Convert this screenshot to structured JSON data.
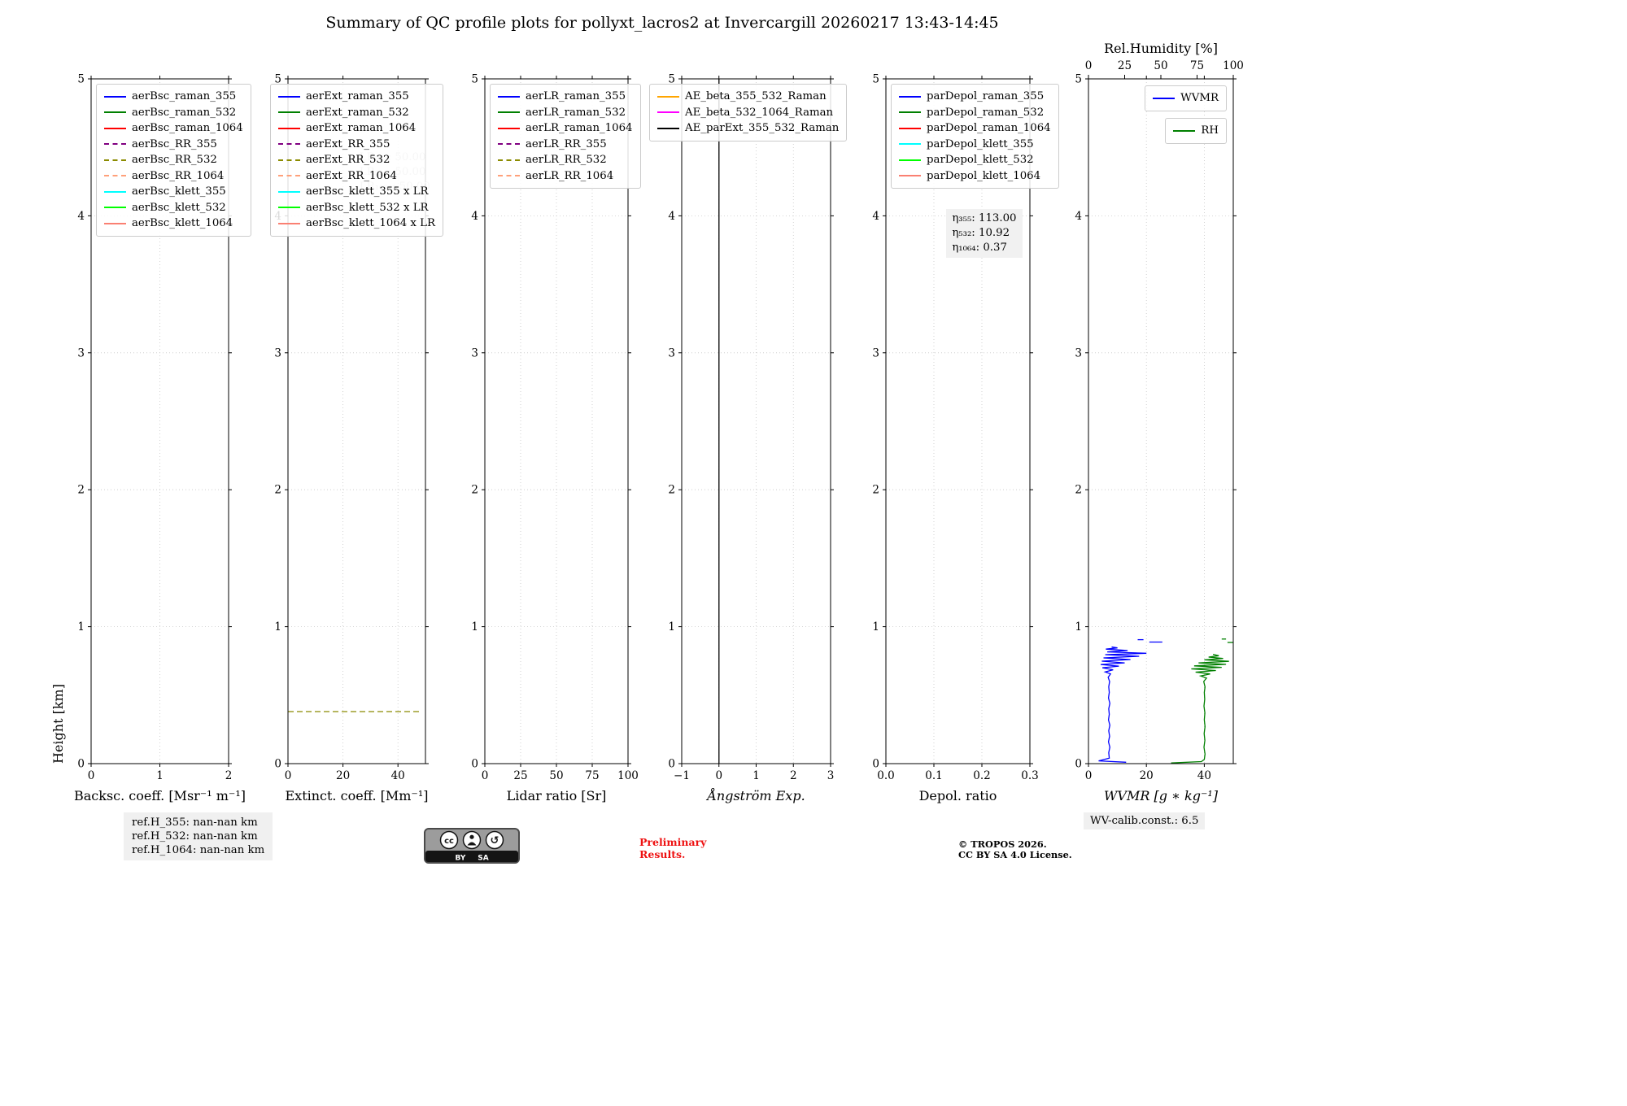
{
  "title": "Summary of QC profile plots for pollyxt_lacros2 at Invercargill 20260217 13:43-14:45",
  "ylabel": "Height [km]",
  "footer": {
    "ref_h_355": "ref.H_355: nan-nan km",
    "ref_h_532": "ref.H_532: nan-nan km",
    "ref_h_1064": "ref.H_1064: nan-nan km",
    "preliminary_1": "Preliminary",
    "preliminary_2": "Results.",
    "copyright_1": "© TROPOS 2026.",
    "copyright_2": "CC BY SA 4.0 License.",
    "wv_calib": "WV-calib.const.: 6.5",
    "cc_by": "BY",
    "cc_sa": "SA"
  },
  "chart_data": [
    {
      "type": "line",
      "xlabel": "Backsc. coeff. [Msr⁻¹ m⁻¹]",
      "xlabel_italic": false,
      "xlim": [
        0,
        2
      ],
      "xtick_vals": [
        0,
        1,
        2
      ],
      "xtick_labels": [
        "0",
        "1",
        "2"
      ],
      "ylim": [
        0,
        5
      ],
      "ytick_vals": [
        0,
        1,
        2,
        3,
        4,
        5
      ],
      "ytick_labels": [
        "0",
        "1",
        "2",
        "3",
        "4",
        "5"
      ],
      "legend": [
        {
          "label": "aerBsc_raman_355",
          "color": "#0000ff",
          "style": "solid"
        },
        {
          "label": "aerBsc_raman_532",
          "color": "#008000",
          "style": "solid"
        },
        {
          "label": "aerBsc_raman_1064",
          "color": "#ff0000",
          "style": "solid"
        },
        {
          "label": "aerBsc_RR_355",
          "color": "#800080",
          "style": "dashed"
        },
        {
          "label": "aerBsc_RR_532",
          "color": "#8b8b00",
          "style": "dashed"
        },
        {
          "label": "aerBsc_RR_1064",
          "color": "#ffa07a",
          "style": "dashed"
        },
        {
          "label": "aerBsc_klett_355",
          "color": "#00ffff",
          "style": "solid"
        },
        {
          "label": "aerBsc_klett_532",
          "color": "#00ff00",
          "style": "solid"
        },
        {
          "label": "aerBsc_klett_1064",
          "color": "#fa8072",
          "style": "solid"
        }
      ],
      "series": []
    },
    {
      "type": "line",
      "xlabel": "Extinct. coeff. [Mm⁻¹]",
      "xlabel_italic": false,
      "xlim": [
        0,
        50
      ],
      "xtick_vals": [
        0,
        20,
        40
      ],
      "xtick_labels": [
        "0",
        "20",
        "40"
      ],
      "ylim": [
        0,
        5
      ],
      "ytick_vals": [
        0,
        1,
        2,
        3,
        4,
        5
      ],
      "ytick_labels": [
        "0",
        "1",
        "2",
        "3",
        "4",
        "5"
      ],
      "legend": [
        {
          "label": "aerExt_raman_355",
          "color": "#0000ff",
          "style": "solid"
        },
        {
          "label": "aerExt_raman_532",
          "color": "#008000",
          "style": "solid"
        },
        {
          "label": "aerExt_raman_1064",
          "color": "#ff0000",
          "style": "solid"
        },
        {
          "label": "aerExt_RR_355",
          "color": "#800080",
          "style": "dashed"
        },
        {
          "label": "aerExt_RR_532",
          "color": "#8b8b00",
          "style": "dashed"
        },
        {
          "label": "aerExt_RR_1064",
          "color": "#ffa07a",
          "style": "dashed"
        },
        {
          "label": "aerBsc_klett_355 x LR",
          "color": "#00ffff",
          "style": "solid"
        },
        {
          "label": "aerBsc_klett_532 x LR",
          "color": "#00ff00",
          "style": "solid"
        },
        {
          "label": "aerBsc_klett_1064 x LR",
          "color": "#fa8072",
          "style": "solid"
        }
      ],
      "annotations": [
        {
          "name": "lidar-ratio-constants",
          "fx": 0.52,
          "fy": 4.48,
          "color": "#c4c4c4",
          "boxed": false,
          "lines": [
            "LR₃₅₅: 50.00",
            "LR₅₃₂: 50.00",
            "LR₁₀₆₄: 50.00"
          ]
        }
      ],
      "series": [
        {
          "name": "aerExt_RR_532",
          "color": "#8b8b00",
          "style": "dashed",
          "axis": "bottom",
          "segments": [
            [
              [
                0,
                0.38
              ],
              [
                48.5,
                0.38
              ]
            ]
          ]
        }
      ]
    },
    {
      "type": "line",
      "xlabel": "Lidar ratio [Sr]",
      "xlabel_italic": false,
      "xlim": [
        0,
        100
      ],
      "xtick_vals": [
        0,
        25,
        50,
        75,
        100
      ],
      "xtick_labels": [
        "0",
        "25",
        "50",
        "75",
        "100"
      ],
      "ylim": [
        0,
        5
      ],
      "ytick_vals": [
        0,
        1,
        2,
        3,
        4,
        5
      ],
      "ytick_labels": [
        "0",
        "1",
        "2",
        "3",
        "4",
        "5"
      ],
      "legend": [
        {
          "label": "aerLR_raman_355",
          "color": "#0000ff",
          "style": "solid"
        },
        {
          "label": "aerLR_raman_532",
          "color": "#008000",
          "style": "solid"
        },
        {
          "label": "aerLR_raman_1064",
          "color": "#ff0000",
          "style": "solid"
        },
        {
          "label": "aerLR_RR_355",
          "color": "#800080",
          "style": "dashed"
        },
        {
          "label": "aerLR_RR_532",
          "color": "#8b8b00",
          "style": "dashed"
        },
        {
          "label": "aerLR_RR_1064",
          "color": "#ffa07a",
          "style": "dashed"
        }
      ],
      "series": []
    },
    {
      "type": "line",
      "xlabel": "Ångström Exp.",
      "xlabel_italic": true,
      "xlim": [
        -1,
        3
      ],
      "xtick_vals": [
        -1,
        0,
        1,
        2,
        3
      ],
      "xtick_labels": [
        "−1",
        "0",
        "1",
        "2",
        "3"
      ],
      "ylim": [
        0,
        5
      ],
      "ytick_vals": [
        0,
        1,
        2,
        3,
        4,
        5
      ],
      "ytick_labels": [
        "0",
        "1",
        "2",
        "3",
        "4",
        "5"
      ],
      "legend": [
        {
          "label": "AE_beta_355_532_Raman",
          "color": "#ffa500",
          "style": "solid"
        },
        {
          "label": "AE_beta_532_1064_Raman",
          "color": "#ff00ff",
          "style": "solid"
        },
        {
          "label": "AE_parExt_355_532_Raman",
          "color": "#000000",
          "style": "solid"
        }
      ],
      "series": [
        {
          "name": "AE_parExt_355_532_Raman",
          "color": "#000000",
          "style": "solid",
          "axis": "bottom",
          "segments": [
            [
              [
                0,
                0
              ],
              [
                0,
                5
              ]
            ]
          ]
        }
      ]
    },
    {
      "type": "line",
      "xlabel": "Depol. ratio",
      "xlabel_italic": false,
      "xlim": [
        0,
        0.3
      ],
      "xtick_vals": [
        0,
        0.1,
        0.2,
        0.3
      ],
      "xtick_labels": [
        "0.0",
        "0.1",
        "0.2",
        "0.3"
      ],
      "ylim": [
        0,
        5
      ],
      "ytick_vals": [
        0,
        1,
        2,
        3,
        4,
        5
      ],
      "ytick_labels": [
        "0",
        "1",
        "2",
        "3",
        "4",
        "5"
      ],
      "legend": [
        {
          "label": "parDepol_raman_355",
          "color": "#0000ff",
          "style": "solid"
        },
        {
          "label": "parDepol_raman_532",
          "color": "#008000",
          "style": "solid"
        },
        {
          "label": "parDepol_raman_1064",
          "color": "#ff0000",
          "style": "solid"
        },
        {
          "label": "parDepol_klett_355",
          "color": "#00ffff",
          "style": "solid"
        },
        {
          "label": "parDepol_klett_532",
          "color": "#00ff00",
          "style": "solid"
        },
        {
          "label": "parDepol_klett_1064",
          "color": "#fa8072",
          "style": "solid"
        }
      ],
      "annotations": [
        {
          "name": "depol-calibration-constants",
          "fx": 0.42,
          "fy": 4.05,
          "color": "#000000",
          "boxed": true,
          "lines": [
            "η₃₅₅: 113.00",
            "η₅₃₂: 10.92",
            "η₁₀₆₄: 0.37"
          ]
        }
      ],
      "series": []
    },
    {
      "type": "line",
      "xlabel": "WVMR [g ∗ kg⁻¹]",
      "xlabel_italic": true,
      "xlim": [
        0,
        50
      ],
      "xtick_vals": [
        0,
        20,
        40
      ],
      "xtick_labels": [
        "0",
        "20",
        "40"
      ],
      "ylim": [
        0,
        5
      ],
      "ytick_vals": [
        0,
        1,
        2,
        3,
        4,
        5
      ],
      "ytick_labels": [
        "0",
        "1",
        "2",
        "3",
        "4",
        "5"
      ],
      "top": {
        "label": "Rel.Humidity [%]",
        "lim": [
          0,
          100
        ],
        "vals": [
          0,
          25,
          50,
          75,
          100
        ],
        "labels": [
          "0",
          "25",
          "50",
          "75",
          "100"
        ]
      },
      "legend_separate": true,
      "legend": [
        {
          "label": "WVMR",
          "color": "#0000ff",
          "style": "solid"
        },
        {
          "label": "RH",
          "color": "#008000",
          "style": "solid"
        }
      ],
      "series": [
        {
          "name": "WVMR",
          "color": "#0000ff",
          "style": "solid",
          "axis": "bottom",
          "segments": [
            [
              [
                13,
                0.01
              ],
              [
                3.5,
                0.02
              ],
              [
                7.2,
                0.04
              ],
              [
                7.0,
                0.08
              ],
              [
                7.4,
                0.12
              ],
              [
                6.9,
                0.16
              ],
              [
                7.3,
                0.2
              ],
              [
                7.0,
                0.24
              ],
              [
                7.4,
                0.28
              ],
              [
                6.9,
                0.32
              ],
              [
                7.2,
                0.36
              ],
              [
                7.0,
                0.4
              ],
              [
                7.4,
                0.44
              ],
              [
                6.9,
                0.48
              ],
              [
                7.2,
                0.52
              ],
              [
                7.0,
                0.56
              ],
              [
                7.3,
                0.6
              ],
              [
                6.8,
                0.63
              ],
              [
                7.6,
                0.655
              ],
              [
                5.8,
                0.67
              ],
              [
                8.5,
                0.685
              ],
              [
                4.8,
                0.7
              ],
              [
                10.5,
                0.712
              ],
              [
                4.2,
                0.724
              ],
              [
                12.5,
                0.736
              ],
              [
                4.6,
                0.748
              ],
              [
                14.5,
                0.76
              ],
              [
                5.2,
                0.772
              ],
              [
                17.5,
                0.784
              ],
              [
                5.8,
                0.796
              ],
              [
                20.0,
                0.806
              ],
              [
                6.5,
                0.816
              ],
              [
                13.5,
                0.826
              ],
              [
                6.0,
                0.836
              ],
              [
                10.0,
                0.845
              ],
              [
                8.0,
                0.852
              ]
            ],
            [
              [
                21,
                0.888
              ],
              [
                25.5,
                0.888
              ]
            ],
            [
              [
                17,
                0.905
              ],
              [
                19,
                0.905
              ]
            ]
          ]
        },
        {
          "name": "RH",
          "color": "#008000",
          "style": "solid",
          "axis": "top",
          "segments": [
            [
              [
                57,
                0.005
              ],
              [
                78,
                0.015
              ],
              [
                80,
                0.03
              ],
              [
                80.5,
                0.07
              ],
              [
                79.8,
                0.12
              ],
              [
                80.4,
                0.17
              ],
              [
                79.9,
                0.22
              ],
              [
                80.5,
                0.27
              ],
              [
                80.0,
                0.32
              ],
              [
                80.4,
                0.37
              ],
              [
                79.8,
                0.42
              ],
              [
                80.3,
                0.47
              ],
              [
                80.0,
                0.52
              ],
              [
                80.5,
                0.56
              ],
              [
                79.6,
                0.6
              ],
              [
                81.5,
                0.625
              ],
              [
                77.5,
                0.64
              ],
              [
                84.0,
                0.655
              ],
              [
                74.0,
                0.668
              ],
              [
                88.0,
                0.68
              ],
              [
                71.0,
                0.692
              ],
              [
                92.0,
                0.703
              ],
              [
                73.0,
                0.714
              ],
              [
                95.0,
                0.725
              ],
              [
                76.0,
                0.736
              ],
              [
                97.0,
                0.747
              ],
              [
                80.0,
                0.758
              ],
              [
                93.0,
                0.768
              ],
              [
                83.0,
                0.778
              ],
              [
                90.0,
                0.788
              ],
              [
                86.0,
                0.798
              ]
            ],
            [
              [
                96,
                0.885
              ],
              [
                100,
                0.885
              ]
            ],
            [
              [
                92,
                0.91
              ],
              [
                95,
                0.91
              ]
            ]
          ]
        }
      ]
    }
  ]
}
